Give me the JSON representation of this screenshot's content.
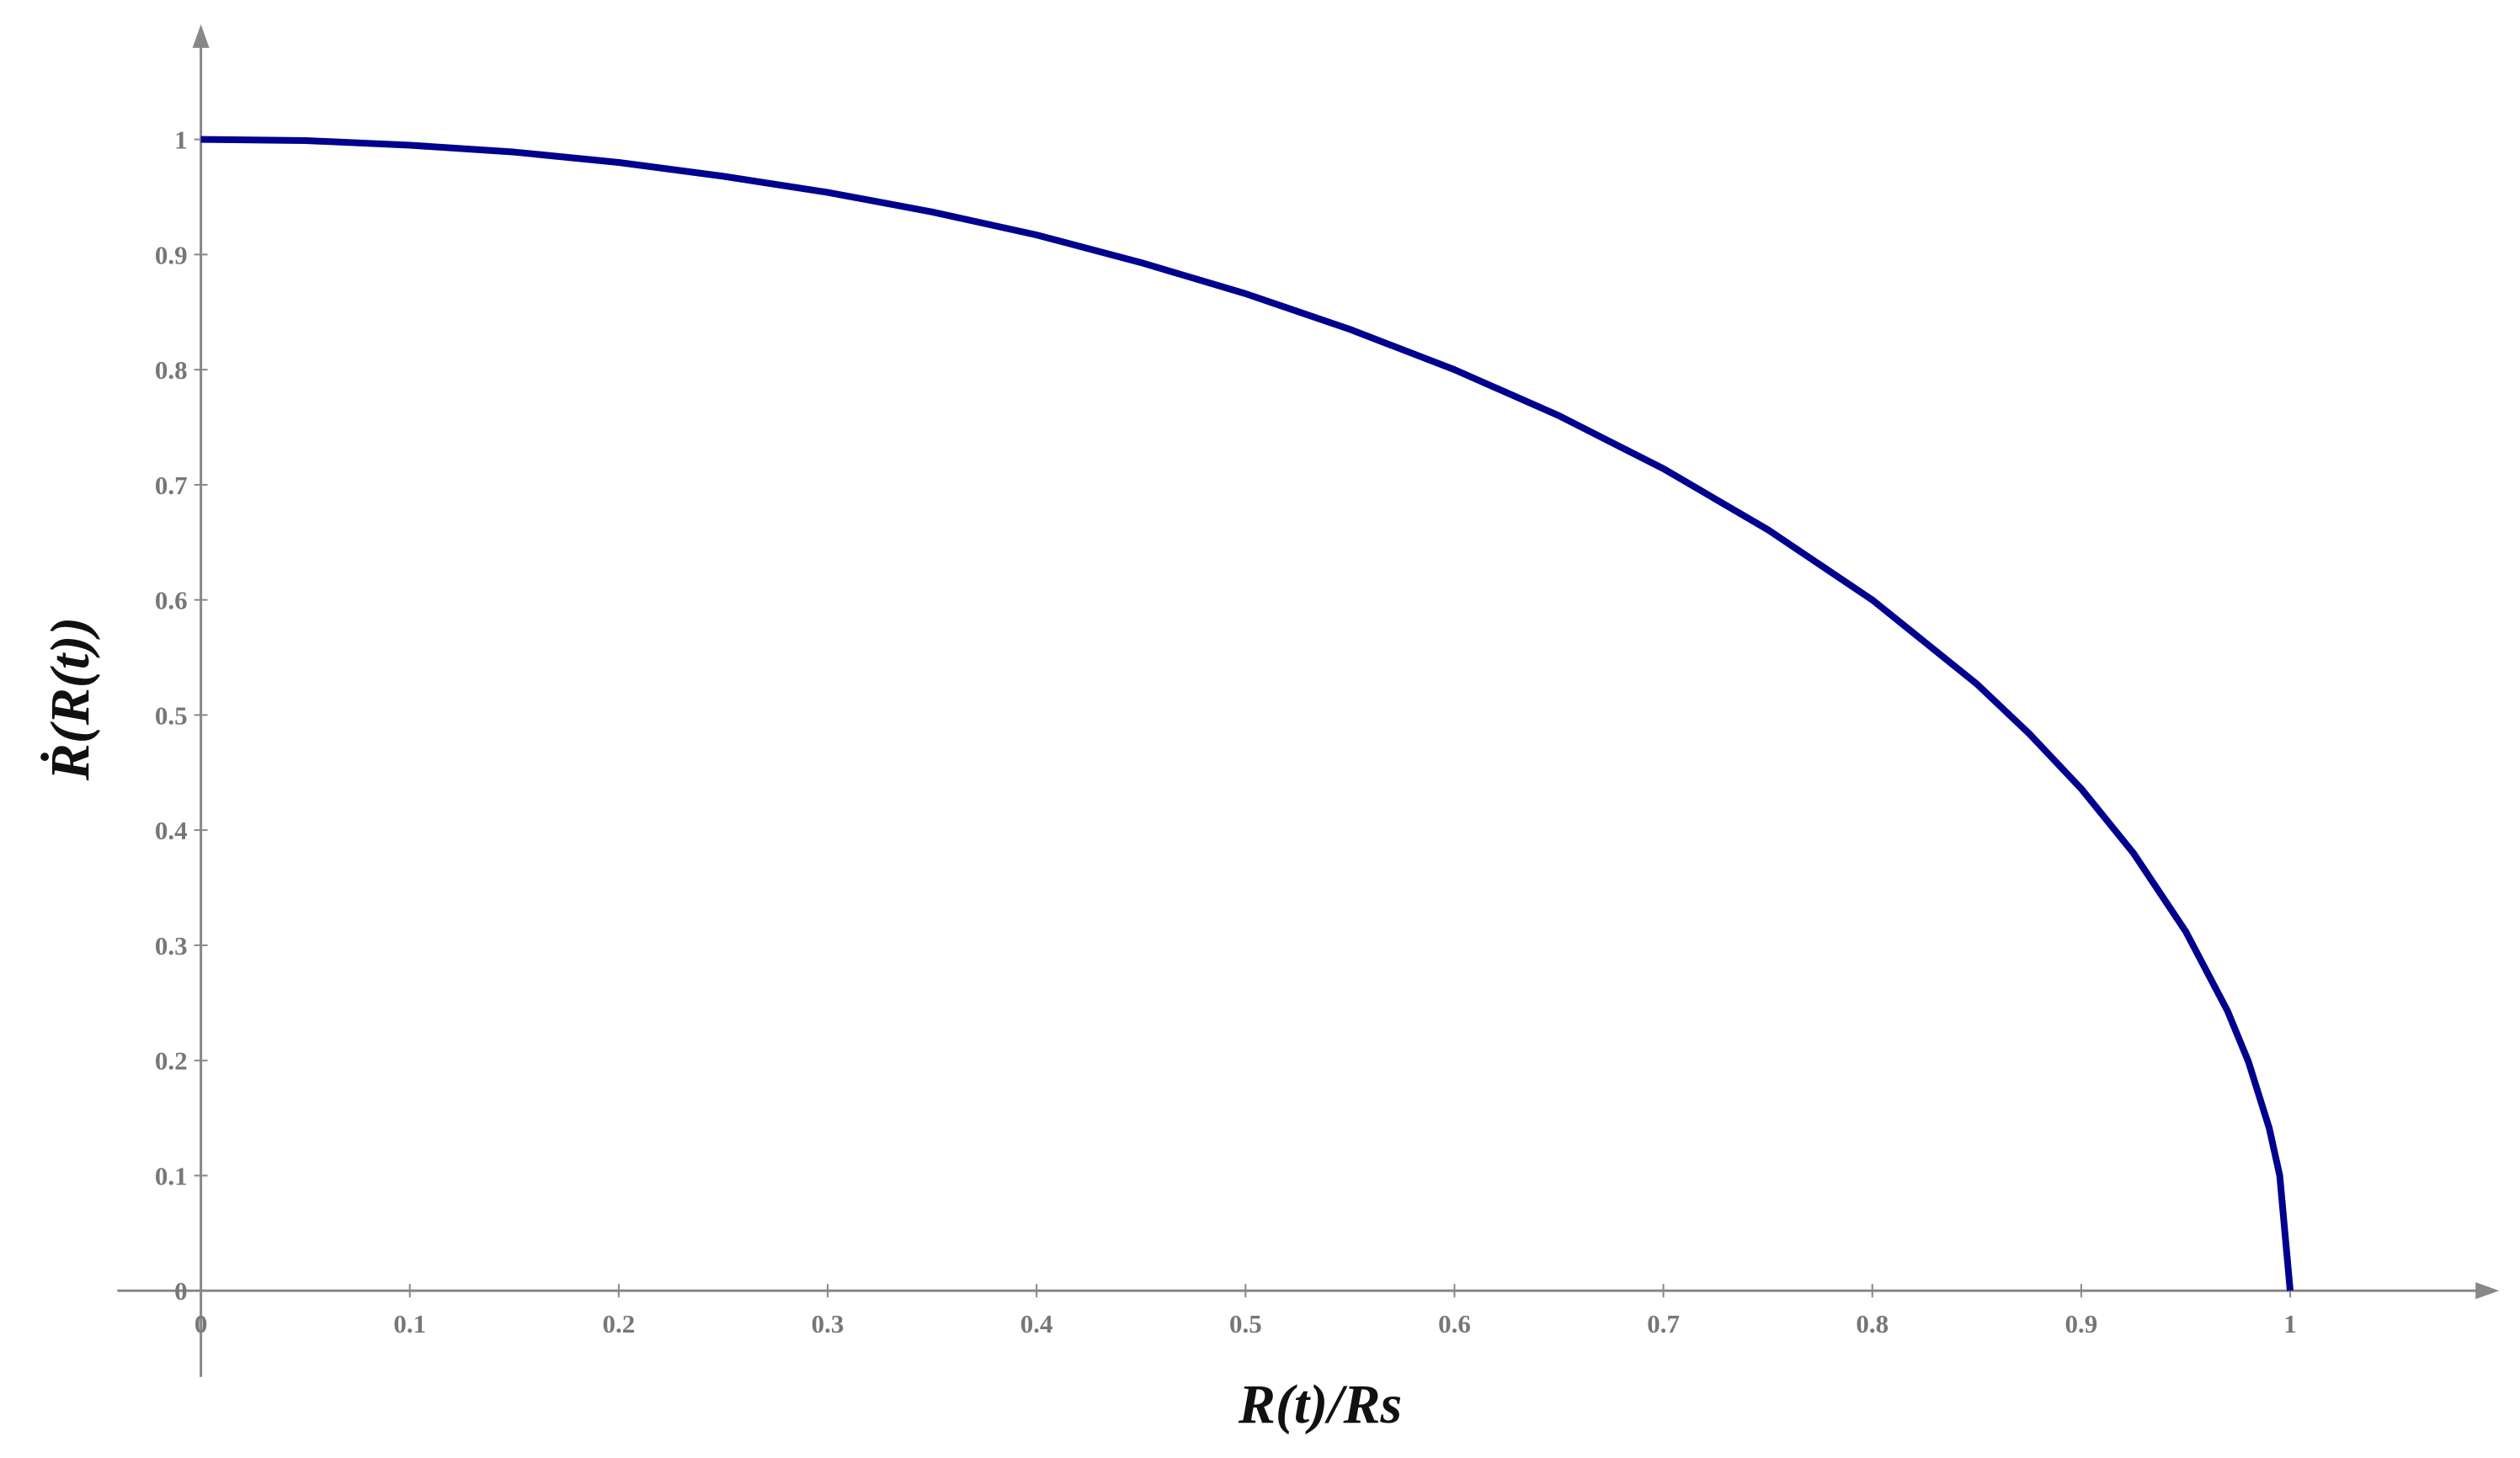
{
  "chart_data": {
    "type": "line",
    "xlabel": "R(t)/Rs",
    "ylabel": "Ṙ(R(t))",
    "x": [
      0,
      0.05,
      0.1,
      0.15,
      0.2,
      0.25,
      0.3,
      0.35,
      0.4,
      0.45,
      0.5,
      0.55,
      0.6,
      0.65,
      0.7,
      0.75,
      0.8,
      0.85,
      0.875,
      0.9,
      0.925,
      0.95,
      0.97,
      0.98,
      0.99,
      0.995,
      1
    ],
    "series": [
      {
        "color": "#00008f",
        "values": [
          1,
          0.999,
          0.995,
          0.989,
          0.98,
          0.968,
          0.954,
          0.937,
          0.917,
          0.893,
          0.866,
          0.835,
          0.8,
          0.76,
          0.714,
          0.661,
          0.6,
          0.527,
          0.484,
          0.436,
          0.38,
          0.312,
          0.243,
          0.199,
          0.141,
          0.1,
          0
        ]
      }
    ],
    "xlim": [
      -0.04,
      1.1
    ],
    "ylim": [
      -0.075,
      1.1
    ],
    "xticks": [
      0,
      0.1,
      0.2,
      0.3,
      0.4,
      0.5,
      0.6,
      0.7,
      0.8,
      0.9,
      1
    ],
    "yticks": [
      0,
      0.1,
      0.2,
      0.3,
      0.4,
      0.5,
      0.6,
      0.7,
      0.8,
      0.9,
      1
    ],
    "grid": false
  }
}
